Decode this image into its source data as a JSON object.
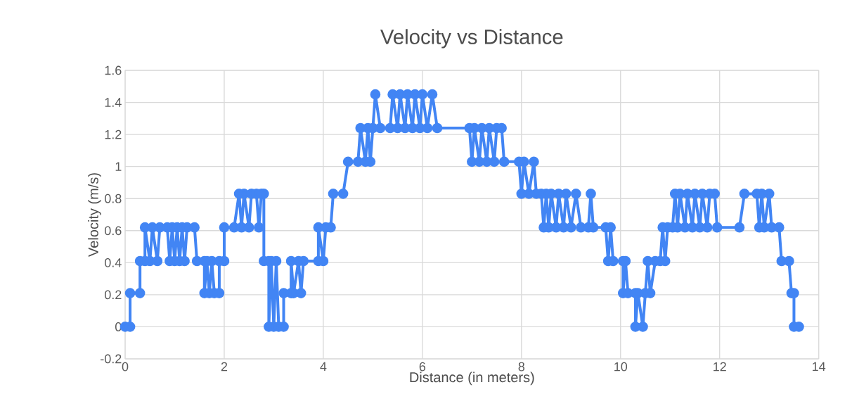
{
  "chart_data": {
    "type": "line",
    "title": "Velocity vs Distance",
    "xlabel": "Distance (in meters)",
    "ylabel": "Velocity (m/s)",
    "xlim": [
      0,
      14
    ],
    "ylim": [
      -0.2,
      1.6
    ],
    "xticks": [
      0,
      2,
      4,
      6,
      8,
      10,
      12,
      14
    ],
    "yticks": [
      -0.2,
      0,
      0.2,
      0.4,
      0.6,
      0.8,
      1,
      1.2,
      1.4,
      1.6
    ],
    "grid": true,
    "marker": "circle",
    "line_style": "solid",
    "series": [
      {
        "color": "#4285f4",
        "x": [
          0.0,
          0.1,
          0.1,
          0.3,
          0.3,
          0.4,
          0.4,
          0.5,
          0.55,
          0.65,
          0.7,
          0.85,
          0.9,
          0.95,
          1.0,
          1.05,
          1.1,
          1.15,
          1.2,
          1.25,
          1.4,
          1.45,
          1.6,
          1.6,
          1.65,
          1.7,
          1.75,
          1.8,
          1.9,
          1.9,
          2.0,
          2.0,
          2.2,
          2.3,
          2.35,
          2.4,
          2.5,
          2.55,
          2.65,
          2.7,
          2.75,
          2.8,
          2.8,
          2.9,
          2.9,
          2.95,
          3.0,
          3.05,
          3.1,
          3.2,
          3.2,
          3.35,
          3.35,
          3.4,
          3.5,
          3.55,
          3.6,
          3.9,
          3.9,
          4.0,
          4.05,
          4.15,
          4.2,
          4.4,
          4.5,
          4.7,
          4.75,
          4.85,
          4.9,
          4.95,
          5.0,
          5.05,
          5.15,
          5.35,
          5.4,
          5.5,
          5.55,
          5.65,
          5.7,
          5.8,
          5.85,
          5.95,
          6.0,
          6.1,
          6.2,
          6.3,
          6.95,
          7.0,
          7.05,
          7.15,
          7.2,
          7.3,
          7.35,
          7.45,
          7.5,
          7.6,
          7.65,
          7.95,
          8.0,
          8.05,
          8.15,
          8.25,
          8.3,
          8.4,
          8.45,
          8.5,
          8.55,
          8.6,
          8.7,
          8.75,
          8.85,
          8.9,
          9.0,
          9.1,
          9.2,
          9.35,
          9.4,
          9.45,
          9.7,
          9.75,
          9.8,
          9.85,
          10.05,
          10.05,
          10.1,
          10.15,
          10.3,
          10.3,
          10.35,
          10.45,
          10.5,
          10.55,
          10.6,
          10.7,
          10.8,
          10.85,
          10.9,
          10.95,
          11.05,
          11.1,
          11.15,
          11.2,
          11.3,
          11.35,
          11.45,
          11.5,
          11.6,
          11.65,
          11.75,
          11.8,
          11.9,
          11.95,
          12.4,
          12.5,
          12.75,
          12.8,
          12.85,
          12.9,
          13.0,
          13.05,
          13.2,
          13.25,
          13.4,
          13.45,
          13.5,
          13.5,
          13.6
        ],
        "values": [
          0,
          0,
          0.21,
          0.21,
          0.41,
          0.41,
          0.62,
          0.41,
          0.62,
          0.41,
          0.62,
          0.62,
          0.41,
          0.62,
          0.41,
          0.62,
          0.41,
          0.62,
          0.41,
          0.62,
          0.62,
          0.41,
          0.41,
          0.21,
          0.41,
          0.21,
          0.41,
          0.21,
          0.21,
          0.41,
          0.41,
          0.62,
          0.62,
          0.83,
          0.62,
          0.83,
          0.62,
          0.83,
          0.83,
          0.62,
          0.83,
          0.83,
          0.41,
          0.41,
          0,
          0.41,
          0,
          0.41,
          0,
          0,
          0.21,
          0.21,
          0.41,
          0.21,
          0.41,
          0.21,
          0.41,
          0.41,
          0.62,
          0.41,
          0.62,
          0.62,
          0.83,
          0.83,
          1.03,
          1.03,
          1.24,
          1.03,
          1.24,
          1.03,
          1.24,
          1.45,
          1.24,
          1.24,
          1.45,
          1.24,
          1.45,
          1.24,
          1.45,
          1.24,
          1.45,
          1.24,
          1.45,
          1.24,
          1.45,
          1.24,
          1.24,
          1.03,
          1.24,
          1.03,
          1.24,
          1.03,
          1.24,
          1.03,
          1.24,
          1.24,
          1.03,
          1.03,
          0.83,
          1.03,
          0.83,
          1.03,
          0.83,
          0.83,
          0.62,
          0.83,
          0.62,
          0.83,
          0.62,
          0.83,
          0.62,
          0.83,
          0.62,
          0.83,
          0.62,
          0.62,
          0.83,
          0.62,
          0.62,
          0.41,
          0.62,
          0.41,
          0.41,
          0.21,
          0.41,
          0.21,
          0.21,
          0,
          0.21,
          0,
          0.21,
          0.41,
          0.21,
          0.41,
          0.41,
          0.62,
          0.41,
          0.62,
          0.62,
          0.83,
          0.62,
          0.83,
          0.62,
          0.83,
          0.62,
          0.83,
          0.62,
          0.83,
          0.62,
          0.83,
          0.83,
          0.62,
          0.62,
          0.83,
          0.83,
          0.62,
          0.83,
          0.62,
          0.83,
          0.62,
          0.62,
          0.41,
          0.41,
          0.21,
          0.21,
          0,
          0
        ]
      }
    ]
  }
}
